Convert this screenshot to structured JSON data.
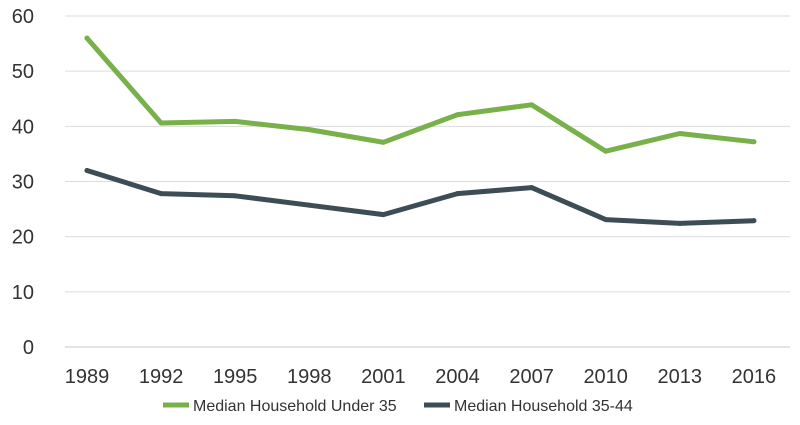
{
  "chart_data": {
    "type": "line",
    "categories": [
      "1989",
      "1992",
      "1995",
      "1998",
      "2001",
      "2004",
      "2007",
      "2010",
      "2013",
      "2016"
    ],
    "series": [
      {
        "name": "Median Household Under 35",
        "color": "#78b04a",
        "values": [
          56.0,
          40.6,
          40.9,
          39.4,
          37.1,
          42.1,
          43.9,
          35.5,
          38.7,
          37.2
        ]
      },
      {
        "name": "Median Household 35-44",
        "color": "#3d4d55",
        "values": [
          32.0,
          27.8,
          27.4,
          25.7,
          24.0,
          27.8,
          28.9,
          23.1,
          22.4,
          22.9
        ]
      }
    ],
    "y_ticks": [
      "0",
      "10",
      "20",
      "30",
      "40",
      "50",
      "60"
    ],
    "ylim": [
      0,
      60
    ],
    "grid": true,
    "legend": "bottom",
    "title": "",
    "xlabel": "",
    "ylabel": ""
  }
}
